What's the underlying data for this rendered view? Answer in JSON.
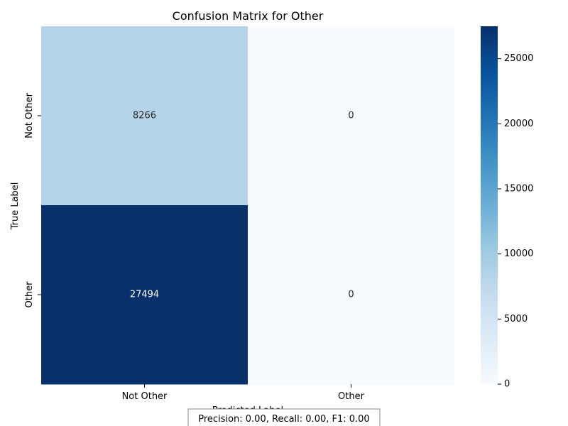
{
  "chart_data": {
    "type": "heatmap",
    "title": "Confusion Matrix for Other",
    "xlabel": "Predicted Label",
    "ylabel": "True Label",
    "x_categories": [
      "Not Other",
      "Other"
    ],
    "y_categories": [
      "Not Other",
      "Other"
    ],
    "values": [
      [
        8266,
        0
      ],
      [
        27494,
        0
      ]
    ],
    "colormap": "Blues",
    "color_range": [
      0,
      27494
    ],
    "colorbar_ticks": [
      0,
      5000,
      10000,
      15000,
      20000,
      25000
    ],
    "colorbar_tick_labels": [
      "0",
      "5000",
      "10000",
      "15000",
      "20000",
      "25000"
    ],
    "grid": false,
    "legend": "colorbar-right"
  },
  "metrics_text": "Precision: 0.00, Recall: 0.00, F1: 0.00"
}
